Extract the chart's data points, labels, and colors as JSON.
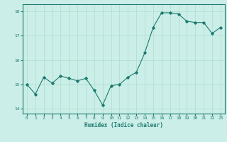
{
  "x": [
    0,
    1,
    2,
    3,
    4,
    5,
    6,
    7,
    8,
    9,
    10,
    11,
    12,
    13,
    14,
    15,
    16,
    17,
    18,
    19,
    20,
    21,
    22,
    23
  ],
  "y": [
    15.0,
    14.6,
    15.3,
    15.05,
    15.35,
    15.25,
    15.15,
    15.25,
    14.75,
    14.15,
    14.95,
    15.0,
    15.3,
    15.5,
    16.3,
    17.35,
    17.95,
    17.95,
    17.9,
    17.6,
    17.55,
    17.55,
    17.1,
    17.35
  ],
  "line_color": "#1a7a6e",
  "marker": "D",
  "marker_size": 1.8,
  "bg_color": "#cceee8",
  "grid_color": "#aaddcc",
  "xlabel": "Humidex (Indice chaleur)",
  "xlabel_fontsize": 5.5,
  "ylim": [
    13.8,
    18.3
  ],
  "xlim": [
    -0.5,
    23.5
  ],
  "yticks": [
    14,
    15,
    16,
    17,
    18
  ],
  "xticks": [
    0,
    1,
    2,
    3,
    4,
    5,
    6,
    7,
    8,
    9,
    10,
    11,
    12,
    13,
    14,
    15,
    16,
    17,
    18,
    19,
    20,
    21,
    22,
    23
  ],
  "tick_fontsize": 4.5,
  "line_width": 0.8
}
